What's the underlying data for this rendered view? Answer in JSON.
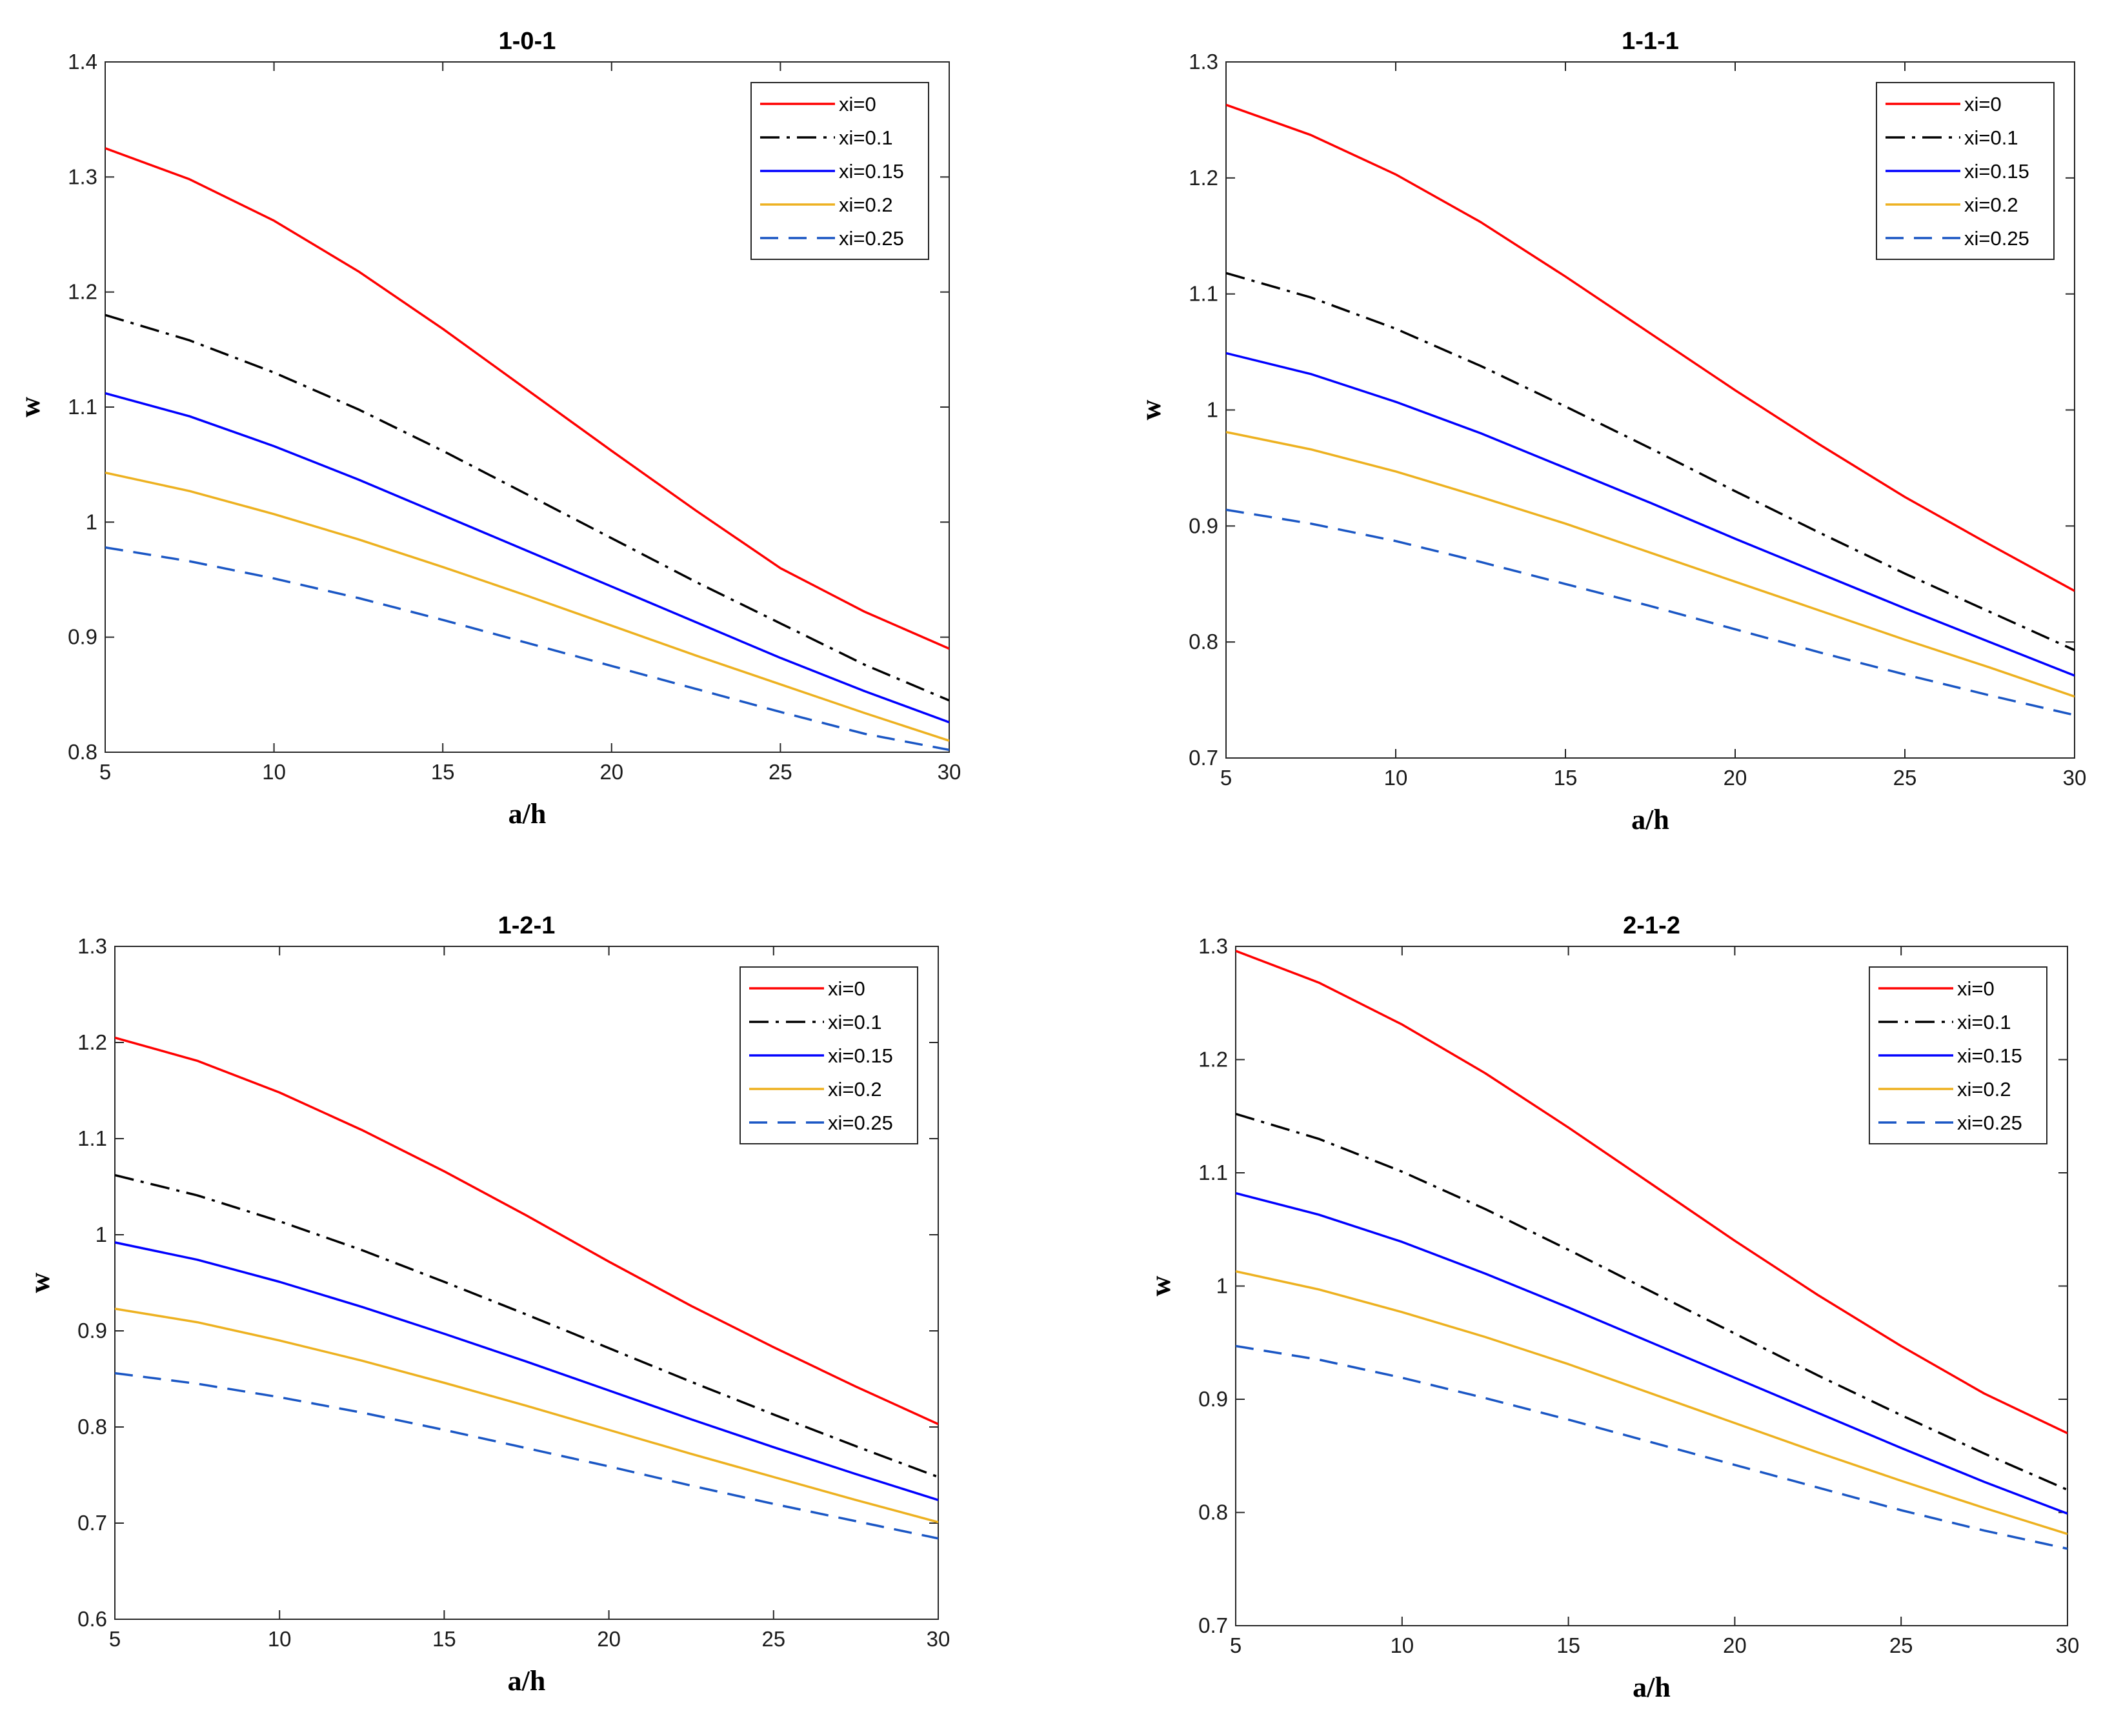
{
  "chart_data": [
    {
      "type": "line",
      "title": "1-0-1",
      "xlabel": "a/h",
      "ylabel": "w",
      "xlim": [
        5,
        30
      ],
      "ylim": [
        0.8,
        1.4
      ],
      "xticks": [
        5,
        10,
        15,
        20,
        25,
        30
      ],
      "yticks": [
        0.8,
        0.9,
        1,
        1.1,
        1.2,
        1.3,
        1.4
      ],
      "legend_position": "top-right",
      "x": [
        5,
        7.5,
        10,
        12.5,
        15,
        17.5,
        20,
        22.5,
        25,
        27.5,
        30
      ],
      "series": [
        {
          "name": "xi=0",
          "color": "#ff0000",
          "style": "solid",
          "values": [
            1.325,
            1.298,
            1.262,
            1.218,
            1.168,
            1.115,
            1.062,
            1.01,
            0.96,
            0.922,
            0.89
          ]
        },
        {
          "name": "xi=0.1",
          "color": "#000000",
          "style": "dashdot",
          "values": [
            1.18,
            1.158,
            1.13,
            1.098,
            1.062,
            1.024,
            0.986,
            0.948,
            0.912,
            0.876,
            0.845
          ]
        },
        {
          "name": "xi=0.15",
          "color": "#0000ff",
          "style": "solid",
          "values": [
            1.112,
            1.092,
            1.066,
            1.037,
            1.006,
            0.975,
            0.944,
            0.913,
            0.882,
            0.853,
            0.826
          ]
        },
        {
          "name": "xi=0.2",
          "color": "#edb120",
          "style": "solid",
          "values": [
            1.043,
            1.027,
            1.007,
            0.985,
            0.961,
            0.936,
            0.91,
            0.884,
            0.859,
            0.834,
            0.81
          ]
        },
        {
          "name": "xi=0.25",
          "color": "#1a56c4",
          "style": "dashed",
          "values": [
            0.978,
            0.966,
            0.951,
            0.934,
            0.915,
            0.895,
            0.875,
            0.855,
            0.835,
            0.816,
            0.802
          ]
        }
      ]
    },
    {
      "type": "line",
      "title": "1-1-1",
      "xlabel": "a/h",
      "ylabel": "w",
      "xlim": [
        5,
        30
      ],
      "ylim": [
        0.7,
        1.3
      ],
      "xticks": [
        5,
        10,
        15,
        20,
        25,
        30
      ],
      "yticks": [
        0.7,
        0.8,
        0.9,
        1,
        1.1,
        1.2,
        1.3
      ],
      "legend_position": "top-right",
      "x": [
        5,
        7.5,
        10,
        12.5,
        15,
        17.5,
        20,
        22.5,
        25,
        27.5,
        30
      ],
      "series": [
        {
          "name": "xi=0",
          "color": "#ff0000",
          "style": "solid",
          "values": [
            1.263,
            1.237,
            1.203,
            1.162,
            1.115,
            1.066,
            1.017,
            0.97,
            0.925,
            0.884,
            0.844
          ]
        },
        {
          "name": "xi=0.1",
          "color": "#000000",
          "style": "dashdot",
          "values": [
            1.118,
            1.097,
            1.07,
            1.038,
            1.003,
            0.967,
            0.93,
            0.894,
            0.859,
            0.826,
            0.793
          ]
        },
        {
          "name": "xi=0.15",
          "color": "#0000ff",
          "style": "solid",
          "values": [
            1.049,
            1.031,
            1.007,
            0.98,
            0.95,
            0.92,
            0.889,
            0.859,
            0.829,
            0.8,
            0.771
          ]
        },
        {
          "name": "xi=0.2",
          "color": "#edb120",
          "style": "solid",
          "values": [
            0.981,
            0.966,
            0.947,
            0.925,
            0.902,
            0.877,
            0.852,
            0.827,
            0.802,
            0.778,
            0.753
          ]
        },
        {
          "name": "xi=0.25",
          "color": "#1a56c4",
          "style": "dashed",
          "values": [
            0.914,
            0.902,
            0.887,
            0.869,
            0.85,
            0.831,
            0.811,
            0.791,
            0.772,
            0.754,
            0.737
          ]
        }
      ]
    },
    {
      "type": "line",
      "title": "1-2-1",
      "xlabel": "a/h",
      "ylabel": "w",
      "xlim": [
        5,
        30
      ],
      "ylim": [
        0.6,
        1.3
      ],
      "xticks": [
        5,
        10,
        15,
        20,
        25,
        30
      ],
      "yticks": [
        0.6,
        0.7,
        0.8,
        0.9,
        1,
        1.1,
        1.2,
        1.3
      ],
      "legend_position": "top-right",
      "x": [
        5,
        7.5,
        10,
        12.5,
        15,
        17.5,
        20,
        22.5,
        25,
        27.5,
        30
      ],
      "series": [
        {
          "name": "xi=0",
          "color": "#ff0000",
          "style": "solid",
          "values": [
            1.205,
            1.181,
            1.148,
            1.109,
            1.066,
            1.02,
            0.972,
            0.926,
            0.883,
            0.842,
            0.803
          ]
        },
        {
          "name": "xi=0.1",
          "color": "#000000",
          "style": "dashdot",
          "values": [
            1.062,
            1.041,
            1.014,
            0.984,
            0.951,
            0.917,
            0.882,
            0.847,
            0.813,
            0.78,
            0.748
          ]
        },
        {
          "name": "xi=0.15",
          "color": "#0000ff",
          "style": "solid",
          "values": [
            0.992,
            0.974,
            0.951,
            0.925,
            0.897,
            0.868,
            0.838,
            0.808,
            0.779,
            0.751,
            0.724
          ]
        },
        {
          "name": "xi=0.2",
          "color": "#edb120",
          "style": "solid",
          "values": [
            0.923,
            0.909,
            0.89,
            0.869,
            0.846,
            0.822,
            0.797,
            0.772,
            0.748,
            0.724,
            0.701
          ]
        },
        {
          "name": "xi=0.25",
          "color": "#1a56c4",
          "style": "dashed",
          "values": [
            0.856,
            0.845,
            0.831,
            0.815,
            0.797,
            0.778,
            0.759,
            0.739,
            0.72,
            0.702,
            0.684
          ]
        }
      ]
    },
    {
      "type": "line",
      "title": "2-1-2",
      "xlabel": "a/h",
      "ylabel": "w",
      "xlim": [
        5,
        30
      ],
      "ylim": [
        0.7,
        1.3
      ],
      "xticks": [
        5,
        10,
        15,
        20,
        25,
        30
      ],
      "yticks": [
        0.7,
        0.8,
        0.9,
        1,
        1.1,
        1.2,
        1.3
      ],
      "legend_position": "top-right",
      "x": [
        5,
        7.5,
        10,
        12.5,
        15,
        17.5,
        20,
        22.5,
        25,
        27.5,
        30
      ],
      "series": [
        {
          "name": "xi=0",
          "color": "#ff0000",
          "style": "solid",
          "values": [
            1.296,
            1.268,
            1.231,
            1.188,
            1.14,
            1.09,
            1.04,
            0.992,
            0.947,
            0.905,
            0.87
          ]
        },
        {
          "name": "xi=0.1",
          "color": "#000000",
          "style": "dashdot",
          "values": [
            1.152,
            1.13,
            1.101,
            1.068,
            1.032,
            0.995,
            0.958,
            0.921,
            0.886,
            0.852,
            0.82
          ]
        },
        {
          "name": "xi=0.15",
          "color": "#0000ff",
          "style": "solid",
          "values": [
            1.082,
            1.063,
            1.039,
            1.011,
            0.981,
            0.95,
            0.919,
            0.888,
            0.857,
            0.827,
            0.799
          ]
        },
        {
          "name": "xi=0.2",
          "color": "#edb120",
          "style": "solid",
          "values": [
            1.013,
            0.997,
            0.977,
            0.955,
            0.931,
            0.905,
            0.879,
            0.853,
            0.828,
            0.804,
            0.781
          ]
        },
        {
          "name": "xi=0.25",
          "color": "#1a56c4",
          "style": "dashed",
          "values": [
            0.947,
            0.935,
            0.919,
            0.901,
            0.882,
            0.862,
            0.842,
            0.822,
            0.802,
            0.784,
            0.768
          ]
        }
      ]
    }
  ]
}
